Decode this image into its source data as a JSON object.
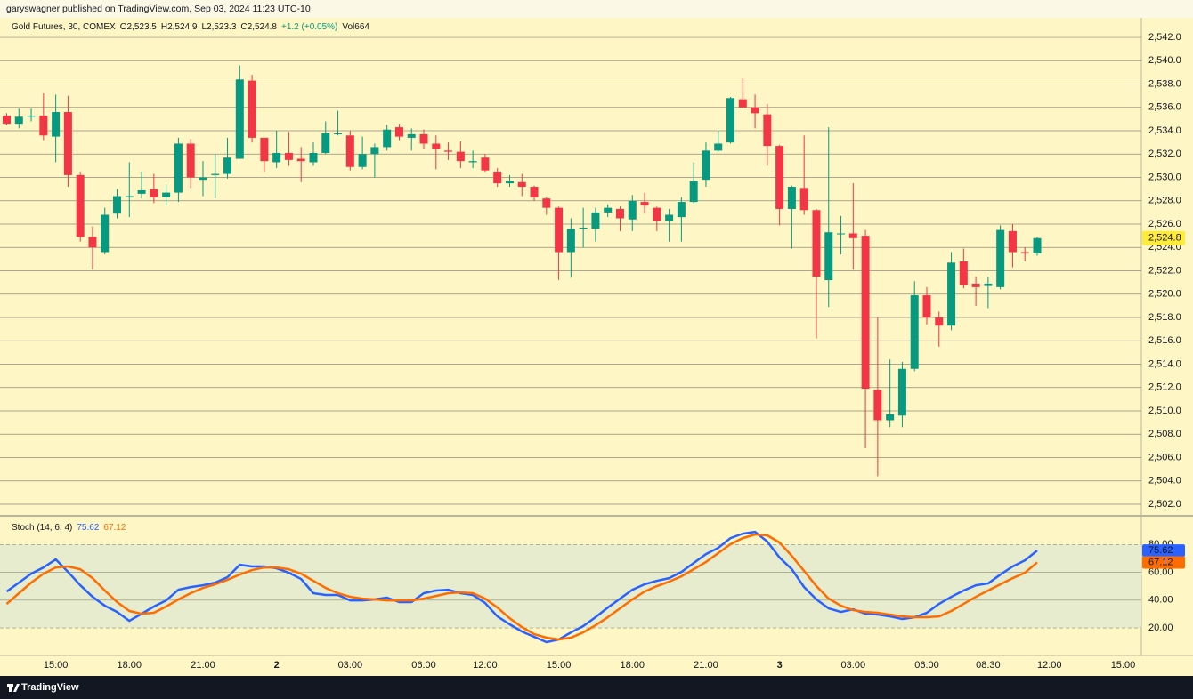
{
  "header": "garyswagner published on TradingView.com, Sep 03, 2024 11:23 UTC-10",
  "footer_brand": "TradingView",
  "chart_data": [
    {
      "type": "candlestick",
      "title": "Gold Futures, 30, COMEX",
      "legend": [
        "O2,523.5",
        "H2,524.9",
        "L2,523.3",
        "C2,524.8",
        "+1.2 (+0.05%)",
        "Vol664"
      ],
      "up_color": "#089981",
      "down_color": "#f23645",
      "open": [
        2535.3,
        2534.6,
        2535.2,
        2535.3,
        2533.5,
        2535.6,
        2530.2,
        2524.9,
        2523.6,
        2526.9,
        2528.3,
        2528.6,
        2529.0,
        2528.3,
        2528.7,
        2532.9,
        2529.8,
        2530.2,
        2530.3,
        2531.6,
        2538.3,
        2533.4,
        2531.3,
        2532.1,
        2531.6,
        2531.3,
        2532.1,
        2533.7,
        2533.6,
        2530.9,
        2532.0,
        2532.6,
        2534.3,
        2533.4,
        2533.7,
        2532.9,
        2532.3,
        2532.2,
        2531.3,
        2531.7,
        2530.5,
        2529.5,
        2529.6,
        2529.2,
        2528.2,
        2527.4,
        2523.6,
        2525.6,
        2525.6,
        2527.0,
        2527.3,
        2526.4,
        2527.9,
        2527.4,
        2526.3,
        2526.6,
        2527.9,
        2529.8,
        2532.3,
        2533.0,
        2536.7,
        2536.0,
        2535.4,
        2532.7,
        2527.3,
        2529.1,
        2527.2,
        2521.2,
        2525.2,
        2525.2,
        2525.0,
        2511.8,
        2509.2,
        2509.6,
        2513.6,
        2519.9,
        2518.0,
        2517.3,
        2522.8,
        2520.9,
        2520.7,
        2520.6,
        2525.4,
        2523.6,
        2523.5
      ],
      "high": [
        2535.5,
        2535.9,
        2535.9,
        2537.2,
        2537.1,
        2537.0,
        2530.5,
        2525.8,
        2527.4,
        2529.0,
        2531.3,
        2530.5,
        2530.3,
        2529.4,
        2533.4,
        2533.3,
        2531.4,
        2532.0,
        2533.4,
        2539.6,
        2538.8,
        2533.4,
        2534.0,
        2533.9,
        2532.6,
        2533.0,
        2534.8,
        2535.7,
        2534.0,
        2533.5,
        2532.9,
        2534.5,
        2534.6,
        2534.2,
        2534.1,
        2533.6,
        2533.0,
        2533.1,
        2532.3,
        2532.0,
        2530.8,
        2530.2,
        2530.3,
        2529.3,
        2528.3,
        2527.5,
        2526.5,
        2527.4,
        2527.4,
        2527.7,
        2527.5,
        2528.5,
        2528.7,
        2527.5,
        2527.3,
        2528.3,
        2531.3,
        2533.0,
        2534.0,
        2536.9,
        2538.5,
        2537.1,
        2536.3,
        2532.8,
        2529.3,
        2533.6,
        2527.3,
        2534.3,
        2526.7,
        2529.5,
        2525.5,
        2518.0,
        2514.4,
        2514.2,
        2521.1,
        2520.6,
        2518.5,
        2523.6,
        2523.9,
        2521.5,
        2521.5,
        2525.9,
        2526.0,
        2524.0,
        2524.9
      ],
      "low": [
        2534.5,
        2534.2,
        2534.8,
        2533.2,
        2531.3,
        2529.2,
        2524.5,
        2522.1,
        2523.4,
        2526.5,
        2526.6,
        2528.2,
        2527.8,
        2527.6,
        2527.9,
        2529.1,
        2528.4,
        2528.2,
        2529.9,
        2531.6,
        2533.0,
        2530.5,
        2530.8,
        2531.0,
        2529.6,
        2531.0,
        2532.0,
        2533.6,
        2530.6,
        2530.7,
        2530.0,
        2532.3,
        2533.2,
        2532.3,
        2532.4,
        2530.7,
        2531.5,
        2530.8,
        2530.8,
        2530.5,
        2529.2,
        2529.2,
        2528.4,
        2528.0,
        2526.8,
        2521.2,
        2521.4,
        2524.0,
        2524.5,
        2526.6,
        2525.4,
        2525.4,
        2526.9,
        2525.4,
        2524.5,
        2524.5,
        2527.8,
        2529.2,
        2532.2,
        2532.9,
        2535.9,
        2534.2,
        2531.0,
        2525.9,
        2523.9,
        2526.8,
        2516.2,
        2518.9,
        2523.4,
        2522.1,
        2506.8,
        2504.4,
        2508.6,
        2508.6,
        2513.4,
        2517.4,
        2515.5,
        2516.9,
        2520.5,
        2519.0,
        2518.8,
        2520.4,
        2522.3,
        2522.8,
        2523.3
      ],
      "close": [
        2534.6,
        2535.2,
        2535.3,
        2533.6,
        2535.6,
        2530.2,
        2524.9,
        2524.0,
        2526.8,
        2528.4,
        2528.4,
        2528.9,
        2528.3,
        2528.7,
        2532.9,
        2530.0,
        2530.0,
        2530.3,
        2531.7,
        2538.4,
        2533.4,
        2531.4,
        2532.1,
        2531.5,
        2531.4,
        2532.1,
        2533.8,
        2533.8,
        2530.9,
        2532.0,
        2532.6,
        2534.1,
        2533.5,
        2533.7,
        2532.9,
        2532.4,
        2532.2,
        2531.4,
        2531.4,
        2530.6,
        2529.5,
        2529.7,
        2529.2,
        2528.3,
        2527.4,
        2523.6,
        2525.6,
        2525.7,
        2527.0,
        2527.4,
        2526.5,
        2528.0,
        2527.6,
        2526.3,
        2526.8,
        2527.9,
        2529.7,
        2532.3,
        2532.9,
        2536.8,
        2536.0,
        2535.5,
        2532.7,
        2527.3,
        2529.2,
        2527.2,
        2521.5,
        2525.3,
        2525.2,
        2524.8,
        2511.9,
        2509.2,
        2509.7,
        2513.6,
        2519.9,
        2518.0,
        2517.3,
        2522.7,
        2520.8,
        2520.6,
        2520.9,
        2525.5,
        2523.6,
        2523.5,
        2524.8
      ],
      "last_label": "2,524.8",
      "last_color": "#ffeb3b",
      "ylim": [
        2501.16,
        2543.68
      ],
      "yticks": [
        {
          "value": 2502,
          "label": "2,502.0"
        },
        {
          "value": 2504,
          "label": "2,504.0"
        },
        {
          "value": 2506,
          "label": "2,506.0"
        },
        {
          "value": 2508,
          "label": "2,508.0"
        },
        {
          "value": 2510,
          "label": "2,510.0"
        },
        {
          "value": 2512,
          "label": "2,512.0"
        },
        {
          "value": 2514,
          "label": "2,514.0"
        },
        {
          "value": 2516,
          "label": "2,516.0"
        },
        {
          "value": 2518,
          "label": "2,518.0"
        },
        {
          "value": 2520,
          "label": "2,520.0"
        },
        {
          "value": 2522,
          "label": "2,522.0"
        },
        {
          "value": 2524,
          "label": "2,524.0"
        },
        {
          "value": 2526,
          "label": "2,526.0"
        },
        {
          "value": 2528,
          "label": "2,528.0"
        },
        {
          "value": 2530,
          "label": "2,530.0"
        },
        {
          "value": 2532,
          "label": "2,532.0"
        },
        {
          "value": 2534,
          "label": "2,534.0"
        },
        {
          "value": 2536,
          "label": "2,536.0"
        },
        {
          "value": 2538,
          "label": "2,538.0"
        },
        {
          "value": 2540,
          "label": "2,540.0"
        },
        {
          "value": 2542,
          "label": "2,542.0"
        }
      ],
      "grid": true,
      "xlim": [
        -0.544,
        92.49
      ],
      "xticks": [
        {
          "value": 4,
          "label": "15:00"
        },
        {
          "value": 10,
          "label": "18:00"
        },
        {
          "value": 16,
          "label": "21:00"
        },
        {
          "value": 22,
          "label": "2"
        },
        {
          "value": 28,
          "label": "03:00"
        },
        {
          "value": 34,
          "label": "06:00"
        },
        {
          "value": 39,
          "label": "12:00"
        },
        {
          "value": 45,
          "label": "15:00"
        },
        {
          "value": 51,
          "label": "18:00"
        },
        {
          "value": 57,
          "label": "21:00"
        },
        {
          "value": 63,
          "label": "3"
        },
        {
          "value": 69,
          "label": "03:00"
        },
        {
          "value": 75,
          "label": "06:00"
        },
        {
          "value": 80,
          "label": "08:30"
        },
        {
          "value": 85,
          "label": "12:00"
        },
        {
          "value": 91,
          "label": "15:00"
        }
      ]
    },
    {
      "type": "line",
      "title": "Stoch (14, 6, 4)",
      "series": [
        {
          "color": "#2962ff",
          "values": [
            46.2,
            52.6,
            59.0,
            63.5,
            69.3,
            60.3,
            50.7,
            42.4,
            36.0,
            31.5,
            25.1,
            30.2,
            35.4,
            39.8,
            47.5,
            49.4,
            50.7,
            52.6,
            56.5,
            65.4,
            64.2,
            64.2,
            62.9,
            59.7,
            55.2,
            45.0,
            43.7,
            43.7,
            39.8,
            39.8,
            40.5,
            41.8,
            38.6,
            38.6,
            45.0,
            46.9,
            47.5,
            45.0,
            43.7,
            37.9,
            28.3,
            22.6,
            17.4,
            13.6,
            9.8,
            11.7,
            16.8,
            21.3,
            27.7,
            34.7,
            41.1,
            47.5,
            51.4,
            53.9,
            55.8,
            60.3,
            66.7,
            73.1,
            77.6,
            84.6,
            87.8,
            89.1,
            82.1,
            70.6,
            62.2,
            49.4,
            40.5,
            34.1,
            31.5,
            33.4,
            30.2,
            29.6,
            28.3,
            26.4,
            27.7,
            30.9,
            37.3,
            42.4,
            46.9,
            50.7,
            52.0,
            58.4,
            64.2,
            68.6,
            75.62
          ]
        },
        {
          "color": "#ff6d00",
          "values": [
            37.3,
            45.0,
            52.6,
            59.0,
            63.5,
            64.2,
            62.2,
            55.8,
            46.9,
            38.6,
            32.2,
            30.2,
            30.9,
            35.4,
            40.5,
            45.0,
            48.8,
            51.4,
            54.6,
            58.4,
            61.6,
            63.5,
            63.5,
            62.2,
            59.0,
            53.9,
            48.8,
            45.0,
            42.4,
            41.1,
            40.5,
            39.8,
            39.8,
            39.8,
            41.1,
            43.0,
            45.0,
            45.6,
            45.0,
            41.1,
            34.7,
            27.0,
            20.6,
            15.5,
            13.0,
            11.7,
            13.0,
            16.8,
            21.9,
            27.7,
            34.1,
            40.5,
            46.2,
            50.1,
            53.3,
            57.1,
            62.2,
            67.4,
            73.8,
            80.2,
            84.6,
            87.2,
            86.6,
            81.4,
            71.8,
            61.0,
            50.1,
            41.1,
            36.0,
            32.8,
            31.5,
            30.9,
            29.6,
            28.3,
            27.7,
            27.7,
            28.3,
            32.2,
            37.3,
            42.4,
            46.9,
            51.4,
            55.8,
            59.7,
            67.12
          ]
        }
      ],
      "band_color": "#e6eccd",
      "ylim": [
        0.2,
        99.4
      ],
      "yticks": [
        {
          "value": 20,
          "label": "20.00"
        },
        {
          "value": 40,
          "label": "40.00"
        },
        {
          "value": 60,
          "label": "60.00"
        },
        {
          "value": 80,
          "label": "80.00"
        }
      ]
    }
  ]
}
